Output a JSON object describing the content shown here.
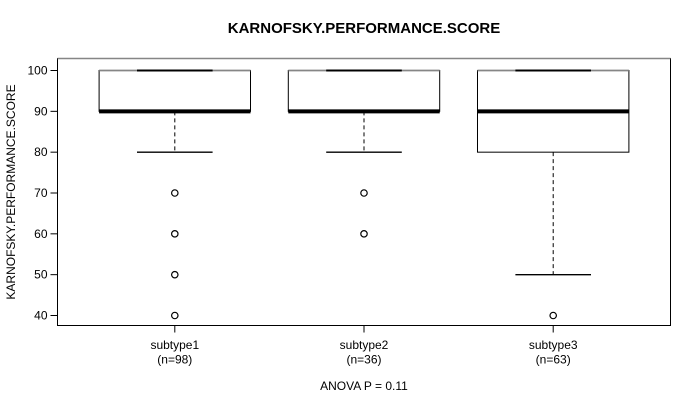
{
  "colors": {
    "foreground": "#000000",
    "background": "#ffffff",
    "box_fill": "#ffffff",
    "box_top_edge_gray": "#868686"
  },
  "chart_data": {
    "type": "boxplot",
    "title": "KARNOFSKY.PERFORMANCE.SCORE",
    "ylabel": "KARNOFSKY.PERFORMANCE.SCORE",
    "xlabel": "",
    "annotation": "ANOVA P = 0.11",
    "ylim": [
      40,
      100
    ],
    "y_ticks": [
      40,
      50,
      60,
      70,
      80,
      90,
      100
    ],
    "grid": "off",
    "legend": "none",
    "groups": [
      {
        "label": "subtype1",
        "count_label": "(n=98)",
        "n": 98,
        "q1": 90,
        "median": 90,
        "q3": 100,
        "whisker_low": 80,
        "whisker_high": 100,
        "outliers": [
          70,
          60,
          50,
          40
        ]
      },
      {
        "label": "subtype2",
        "count_label": "(n=36)",
        "n": 36,
        "q1": 90,
        "median": 90,
        "q3": 100,
        "whisker_low": 80,
        "whisker_high": 100,
        "outliers": [
          70,
          60
        ]
      },
      {
        "label": "subtype3",
        "count_label": "(n=63)",
        "n": 63,
        "q1": 80,
        "median": 90,
        "q3": 100,
        "whisker_low": 50,
        "whisker_high": 100,
        "outliers": [
          40
        ]
      }
    ]
  }
}
